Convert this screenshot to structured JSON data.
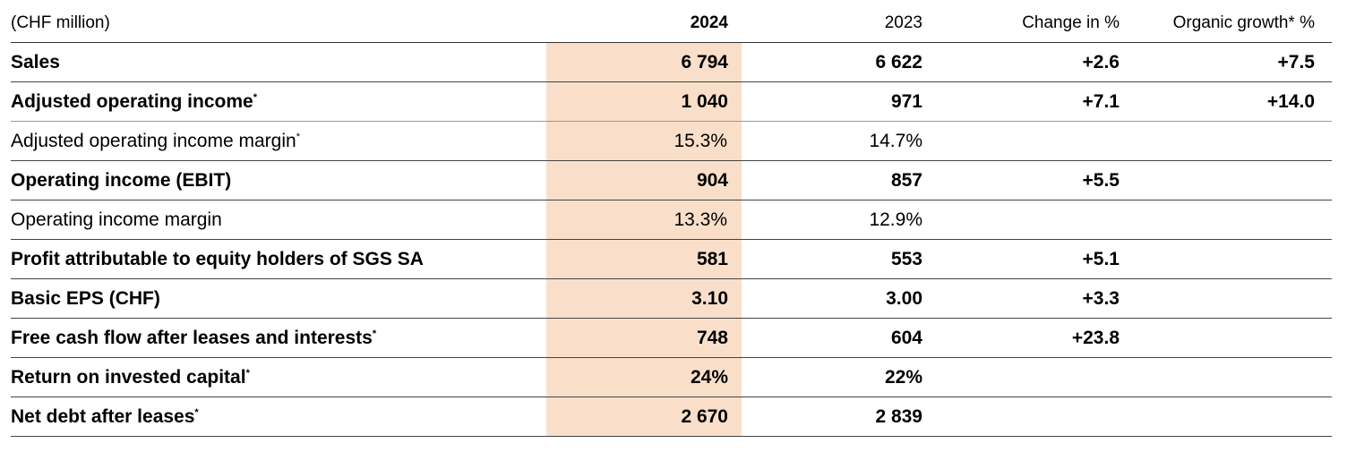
{
  "header": {
    "unit": "(CHF million)",
    "y2024": "2024",
    "y2023": "2023",
    "change": "Change in %",
    "organic": "Organic growth* %"
  },
  "rows": [
    {
      "label": "Sales",
      "star": "",
      "v2024": "6 794",
      "v2023": "6 622",
      "change": "+2.6",
      "organic": "+7.5",
      "bold": true
    },
    {
      "label": "Adjusted operating income",
      "star": "*",
      "v2024": "1 040",
      "v2023": "971",
      "change": "+7.1",
      "organic": "+14.0",
      "bold": true
    },
    {
      "label": "Adjusted operating income margin",
      "star": "*",
      "v2024": "15.3%",
      "v2023": "14.7%",
      "change": "",
      "organic": "",
      "bold": false
    },
    {
      "label": "Operating income (EBIT)",
      "star": "",
      "v2024": "904",
      "v2023": "857",
      "change": "+5.5",
      "organic": "",
      "bold": true
    },
    {
      "label": "Operating income margin",
      "star": "",
      "v2024": "13.3%",
      "v2023": "12.9%",
      "change": "",
      "organic": "",
      "bold": false
    },
    {
      "label": "Profit attributable to equity holders of SGS SA",
      "star": "",
      "v2024": "581",
      "v2023": "553",
      "change": "+5.1",
      "organic": "",
      "bold": true
    },
    {
      "label": "Basic EPS (CHF)",
      "star": "",
      "v2024": "3.10",
      "v2023": "3.00",
      "change": "+3.3",
      "organic": "",
      "bold": true
    },
    {
      "label": "Free cash flow after leases and interests",
      "star": "*",
      "v2024": "748",
      "v2023": "604",
      "change": "+23.8",
      "organic": "",
      "bold": true
    },
    {
      "label": "Return on invested capital",
      "star": "*",
      "v2024": "24%",
      "v2023": "22%",
      "change": "",
      "organic": "",
      "bold": true
    },
    {
      "label": "Net debt after leases",
      "star": "*",
      "v2024": "2 670",
      "v2023": "2 839",
      "change": "",
      "organic": "",
      "bold": true
    }
  ],
  "colors": {
    "highlight": "#f9dfca"
  }
}
